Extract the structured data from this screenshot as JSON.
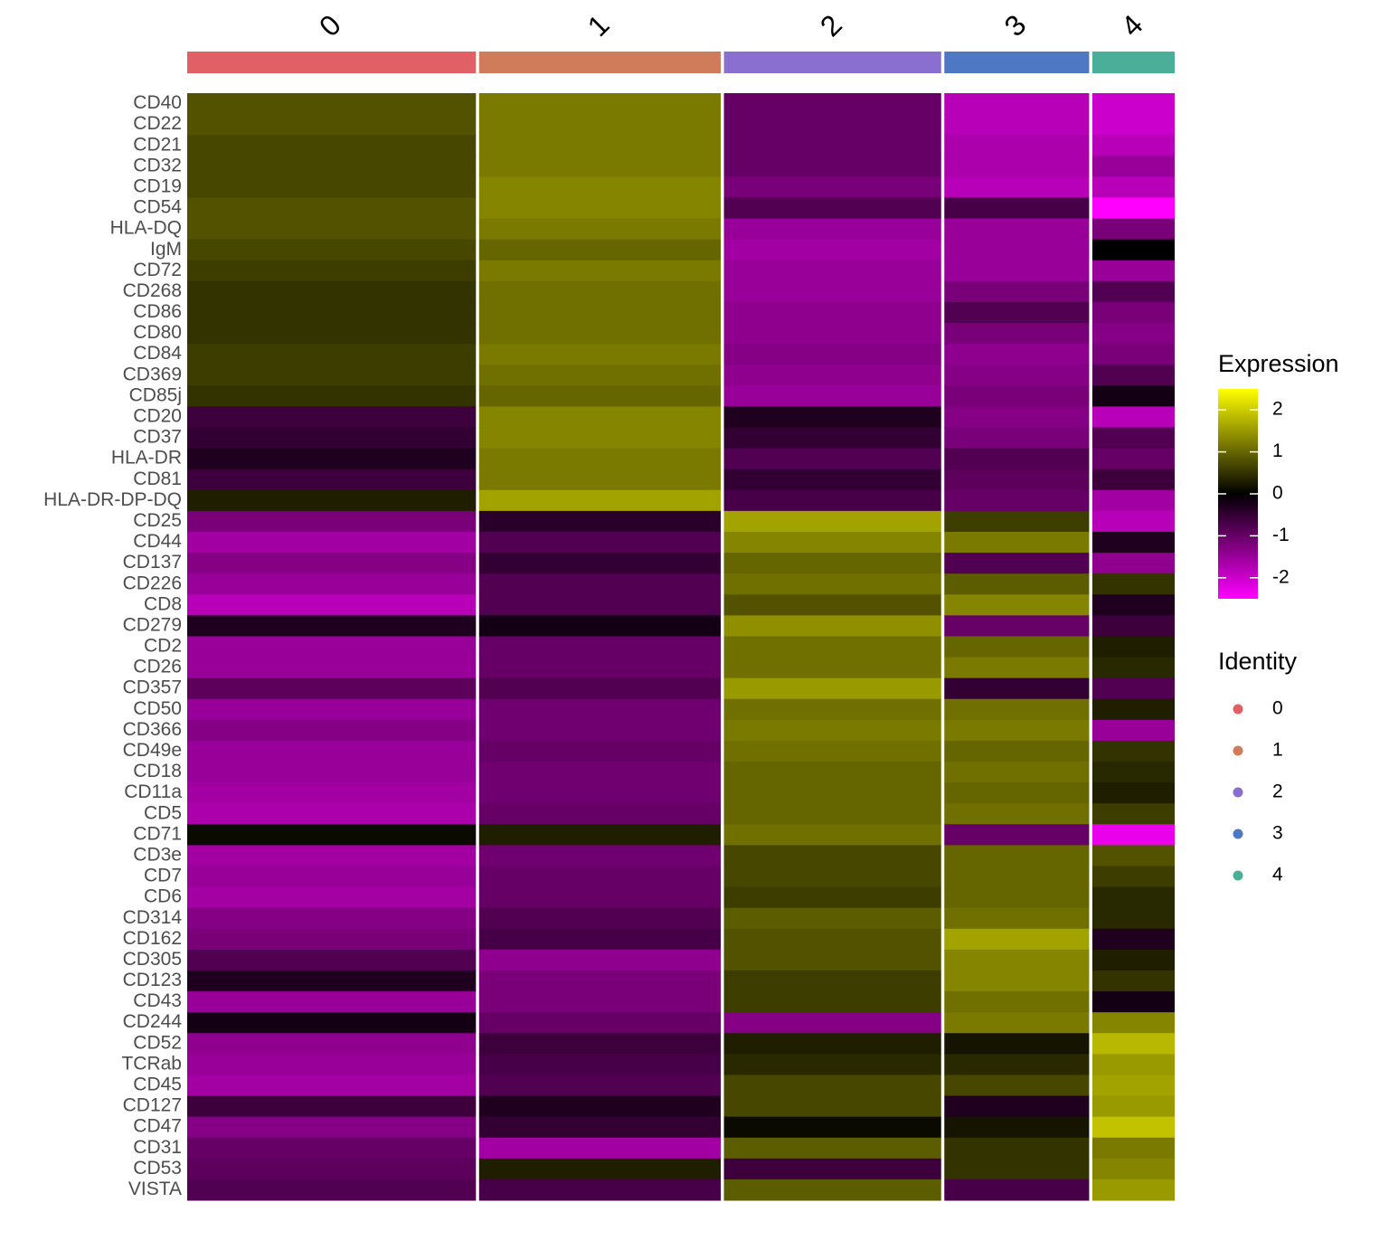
{
  "chart_data": {
    "type": "heatmap",
    "categories": [
      "0",
      "1",
      "2",
      "3",
      "4"
    ],
    "cluster_colors": [
      "#E06066",
      "#D07B5A",
      "#8A6FD0",
      "#4F78C4",
      "#4BAE99"
    ],
    "genes": [
      "CD40",
      "CD22",
      "CD21",
      "CD32",
      "CD19",
      "CD54",
      "HLA-DQ",
      "IgM",
      "CD72",
      "CD268",
      "CD86",
      "CD80",
      "CD84",
      "CD369",
      "CD85j",
      "CD20",
      "CD37",
      "HLA-DR",
      "CD81",
      "HLA-DR-DP-DQ",
      "CD25",
      "CD44",
      "CD137",
      "CD226",
      "CD8",
      "CD279",
      "CD2",
      "CD26",
      "CD357",
      "CD50",
      "CD366",
      "CD49e",
      "CD18",
      "CD11a",
      "CD5",
      "CD71",
      "CD3e",
      "CD7",
      "CD6",
      "CD314",
      "CD162",
      "CD305",
      "CD123",
      "CD43",
      "CD244",
      "CD52",
      "TCRab",
      "CD45",
      "CD127",
      "CD47",
      "CD31",
      "CD53",
      "VISTA"
    ],
    "values": [
      [
        0.8,
        1.2,
        -1,
        -1.8,
        -2
      ],
      [
        0.8,
        1.2,
        -1,
        -1.8,
        -2
      ],
      [
        0.7,
        1.2,
        -1,
        -1.7,
        -1.8
      ],
      [
        0.7,
        1.2,
        -1,
        -1.7,
        -1.5
      ],
      [
        0.7,
        1.3,
        -1.2,
        -1.8,
        -1.8
      ],
      [
        0.8,
        1.3,
        -0.8,
        -0.7,
        -2.5
      ],
      [
        0.8,
        1.2,
        -1.5,
        -1.5,
        -1.2
      ],
      [
        0.7,
        1.0,
        -1.6,
        -1.5,
        0
      ],
      [
        0.6,
        1.2,
        -1.5,
        -1.5,
        -1.5
      ],
      [
        0.5,
        1.1,
        -1.5,
        -1.2,
        -0.8
      ],
      [
        0.5,
        1.1,
        -1.4,
        -0.8,
        -1.2
      ],
      [
        0.5,
        1.1,
        -1.4,
        -1.2,
        -1.3
      ],
      [
        0.6,
        1.2,
        -1.3,
        -1.4,
        -1.2
      ],
      [
        0.6,
        1.1,
        -1.4,
        -1.3,
        -0.8
      ],
      [
        0.5,
        1.0,
        -1.5,
        -1.2,
        -0.2
      ],
      [
        -0.6,
        1.3,
        -0.3,
        -1.3,
        -1.8
      ],
      [
        -0.5,
        1.3,
        -0.5,
        -1.2,
        -0.8
      ],
      [
        -0.3,
        1.2,
        -0.8,
        -0.8,
        -1.0
      ],
      [
        -0.6,
        1.2,
        -0.5,
        -0.9,
        -0.6
      ],
      [
        0.3,
        1.6,
        -0.7,
        -1.0,
        -1.6
      ],
      [
        -1.2,
        -0.4,
        1.6,
        0.6,
        -1.8
      ],
      [
        -1.6,
        -0.8,
        1.3,
        1.2,
        -0.3
      ],
      [
        -1.3,
        -0.5,
        1.0,
        -0.8,
        -1.4
      ],
      [
        -1.5,
        -0.8,
        1.1,
        0.9,
        0.5
      ],
      [
        -1.8,
        -0.8,
        0.8,
        1.3,
        -0.3
      ],
      [
        -0.3,
        -0.2,
        1.4,
        -1.0,
        -0.6
      ],
      [
        -1.5,
        -1.0,
        1.1,
        1.0,
        0.3
      ],
      [
        -1.5,
        -1.0,
        1.1,
        1.2,
        0.4
      ],
      [
        -0.9,
        -0.8,
        1.5,
        -0.5,
        -0.8
      ],
      [
        -1.5,
        -1.1,
        1.1,
        1.1,
        0.3
      ],
      [
        -1.3,
        -1.1,
        1.2,
        1.2,
        -1.5
      ],
      [
        -1.5,
        -1.0,
        1.1,
        1.0,
        0.5
      ],
      [
        -1.5,
        -1.1,
        1.0,
        1.1,
        0.4
      ],
      [
        -1.6,
        -1.1,
        1.0,
        1.0,
        0.3
      ],
      [
        -1.7,
        -1.0,
        1.0,
        1.1,
        0.6
      ],
      [
        0.1,
        0.3,
        1.1,
        -1.0,
        -2.3
      ],
      [
        -1.6,
        -1.1,
        0.7,
        1.0,
        0.8
      ],
      [
        -1.5,
        -1.0,
        0.7,
        1.0,
        0.6
      ],
      [
        -1.6,
        -1.0,
        0.6,
        1.0,
        0.4
      ],
      [
        -1.3,
        -0.8,
        0.9,
        1.1,
        0.4
      ],
      [
        -1.2,
        -0.7,
        0.8,
        1.6,
        -0.3
      ],
      [
        -0.8,
        -1.4,
        0.8,
        1.3,
        0.3
      ],
      [
        -0.3,
        -1.2,
        0.6,
        1.3,
        0.5
      ],
      [
        -1.5,
        -1.2,
        0.6,
        1.1,
        -0.2
      ],
      [
        -0.2,
        -1.0,
        -1.3,
        1.2,
        1.3
      ],
      [
        -1.4,
        -0.6,
        0.3,
        0.2,
        1.8
      ],
      [
        -1.5,
        -0.7,
        0.4,
        0.4,
        1.5
      ],
      [
        -1.6,
        -0.8,
        0.7,
        0.7,
        1.6
      ],
      [
        -0.6,
        -0.3,
        0.7,
        -0.3,
        1.5
      ],
      [
        -1.3,
        -0.5,
        0.1,
        0.2,
        1.9
      ],
      [
        -1.0,
        -1.6,
        0.9,
        0.5,
        1.2
      ],
      [
        -0.9,
        0.3,
        -0.6,
        0.5,
        1.3
      ],
      [
        -0.8,
        -0.7,
        0.9,
        -0.7,
        1.5
      ]
    ],
    "color_scale": {
      "low": "#ff00ff",
      "mid": "#000000",
      "high": "#ffff00"
    },
    "clim": [
      -2.5,
      2.5
    ],
    "colorbar_ticks": [
      -2,
      -1,
      0,
      1,
      2
    ],
    "colorbar_title": "Expression",
    "identity_title": "Identity"
  }
}
